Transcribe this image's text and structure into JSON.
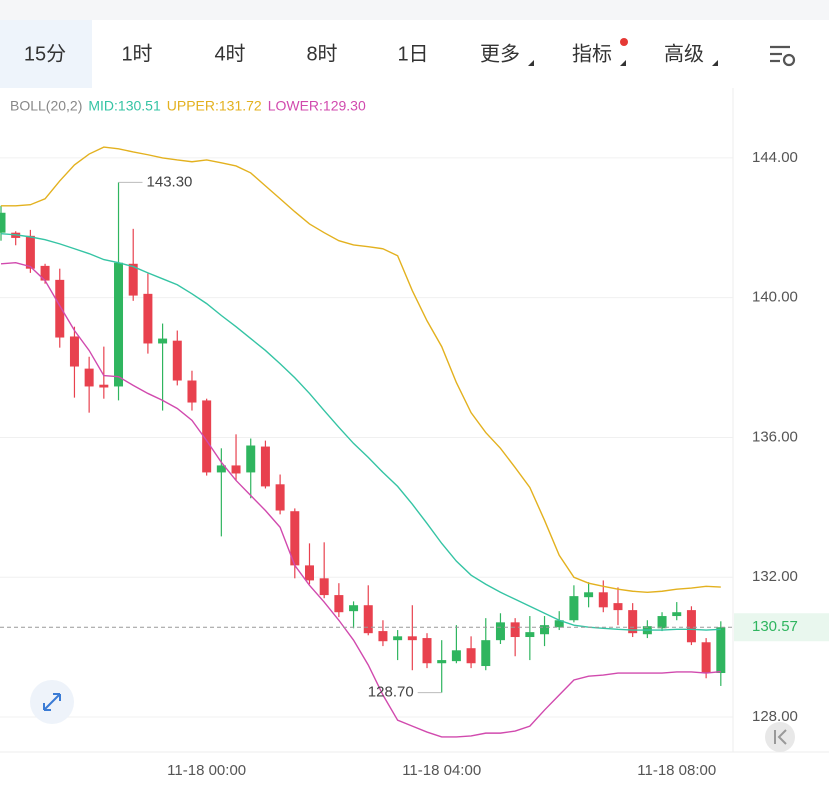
{
  "tabs": [
    "15分",
    "1时",
    "4时",
    "8时",
    "1日",
    "更多",
    "指标",
    "高级"
  ],
  "chart_data": {
    "type": "candlestick",
    "indicator": "BOLL(20,2)",
    "categories": [
      null,
      null,
      null,
      null,
      null,
      null,
      null,
      null,
      null,
      null,
      null,
      null,
      null,
      null,
      "11-18 00:00",
      null,
      null,
      null,
      null,
      null,
      null,
      null,
      null,
      null,
      null,
      null,
      null,
      null,
      null,
      null,
      "11-18 04:00",
      null,
      null,
      null,
      null,
      null,
      null,
      null,
      null,
      null,
      null,
      null,
      null,
      null,
      null,
      null,
      "11-18 08:00",
      null,
      null,
      null
    ],
    "open": [
      141.86,
      141.86,
      141.77,
      140.91,
      140.51,
      138.89,
      137.97,
      137.51,
      137.46,
      140.97,
      140.11,
      138.69,
      138.77,
      137.63,
      137.06,
      135.0,
      135.2,
      135.0,
      135.74,
      134.66,
      133.89,
      132.34,
      131.97,
      131.49,
      131.03,
      131.2,
      130.46,
      130.2,
      130.31,
      130.26,
      129.54,
      129.6,
      129.97,
      129.46,
      130.2,
      130.71,
      130.29,
      130.37,
      130.57,
      130.77,
      131.43,
      131.57,
      131.26,
      131.06,
      130.37,
      130.54,
      130.89,
      131.06,
      130.14,
      129.26
    ],
    "high": [
      142.63,
      141.9,
      141.94,
      140.97,
      140.83,
      139.17,
      138.31,
      138.6,
      143.3,
      141.97,
      140.69,
      139.26,
      139.06,
      137.91,
      137.11,
      135.69,
      136.09,
      135.97,
      135.91,
      134.94,
      133.97,
      132.97,
      133.0,
      131.83,
      131.31,
      131.77,
      130.77,
      130.49,
      131.2,
      130.4,
      130.2,
      130.63,
      130.31,
      130.83,
      130.97,
      130.83,
      130.89,
      130.89,
      131.03,
      131.77,
      131.86,
      131.91,
      131.71,
      131.26,
      130.77,
      131.0,
      131.29,
      131.17,
      130.26,
      130.74
    ],
    "low": [
      141.63,
      141.5,
      140.71,
      140.4,
      138.57,
      137.14,
      136.71,
      137.11,
      137.06,
      139.91,
      138.4,
      136.77,
      137.49,
      136.77,
      134.91,
      133.17,
      134.77,
      134.26,
      134.54,
      133.8,
      131.97,
      131.8,
      131.4,
      130.86,
      130.54,
      130.34,
      130.03,
      129.63,
      129.34,
      129.4,
      128.7,
      129.54,
      129.4,
      129.34,
      130.09,
      129.74,
      129.63,
      130.03,
      130.49,
      130.71,
      131.14,
      131.0,
      130.63,
      130.29,
      130.26,
      130.46,
      130.77,
      130.06,
      129.11,
      128.89
    ],
    "close": [
      142.43,
      141.71,
      140.83,
      140.49,
      138.86,
      138.03,
      137.46,
      137.43,
      141.0,
      140.06,
      138.69,
      138.83,
      137.63,
      137.0,
      135.0,
      135.2,
      134.97,
      135.77,
      134.6,
      133.91,
      132.34,
      131.91,
      131.49,
      131.0,
      131.2,
      130.4,
      130.17,
      130.31,
      130.2,
      129.54,
      129.63,
      129.91,
      129.54,
      130.2,
      130.71,
      130.29,
      130.43,
      130.63,
      130.77,
      131.46,
      131.57,
      131.14,
      131.06,
      130.4,
      130.6,
      130.89,
      131.0,
      130.14,
      129.26,
      130.57
    ],
    "up_color": "#2fb55f",
    "down_color": "#e8414e",
    "lines": [
      {
        "name": "MID:130.51",
        "color": "#35c4a4",
        "values": [
          141.83,
          141.8,
          141.74,
          141.66,
          141.54,
          141.4,
          141.26,
          141.09,
          141.0,
          140.89,
          140.71,
          140.54,
          140.37,
          140.11,
          139.83,
          139.49,
          139.17,
          138.83,
          138.49,
          138.11,
          137.71,
          137.26,
          136.77,
          136.29,
          135.83,
          135.43,
          135.0,
          134.6,
          134.09,
          133.54,
          132.97,
          132.46,
          132.06,
          131.8,
          131.57,
          131.37,
          131.17,
          130.97,
          130.77,
          130.63,
          130.57,
          130.54,
          130.51,
          130.49,
          130.49,
          130.49,
          130.51,
          130.51,
          130.49,
          130.51
        ]
      },
      {
        "name": "UPPER:131.72",
        "color": "#e3b11f",
        "values": [
          142.63,
          142.63,
          142.66,
          142.83,
          143.34,
          143.8,
          144.11,
          144.31,
          144.26,
          144.17,
          144.09,
          144.0,
          143.94,
          143.89,
          143.94,
          143.86,
          143.77,
          143.57,
          143.2,
          142.83,
          142.46,
          142.11,
          141.86,
          141.63,
          141.51,
          141.46,
          141.4,
          141.2,
          140.2,
          139.34,
          138.6,
          137.57,
          136.71,
          136.14,
          135.69,
          135.14,
          134.57,
          133.63,
          132.63,
          132.0,
          131.83,
          131.74,
          131.66,
          131.6,
          131.57,
          131.6,
          131.66,
          131.69,
          131.74,
          131.72
        ]
      },
      {
        "name": "LOWER:129.30",
        "color": "#d14aae",
        "values": [
          140.97,
          141.0,
          140.89,
          140.49,
          139.77,
          139.06,
          138.49,
          137.77,
          137.74,
          137.49,
          137.26,
          137.06,
          136.83,
          136.49,
          135.91,
          135.29,
          134.77,
          134.34,
          133.91,
          133.43,
          132.34,
          131.77,
          131.29,
          130.77,
          130.2,
          129.49,
          128.63,
          127.91,
          127.74,
          127.57,
          127.43,
          127.43,
          127.46,
          127.54,
          127.54,
          127.6,
          127.74,
          128.2,
          128.63,
          129.06,
          129.17,
          129.2,
          129.26,
          129.26,
          129.26,
          129.26,
          129.29,
          129.29,
          129.26,
          129.3
        ]
      }
    ],
    "max_label": "143.30",
    "min_label": "128.70",
    "last_price": {
      "value": 130.57,
      "label": "130.57"
    },
    "ylim": [
      127,
      146
    ],
    "yticks": [
      {
        "value": 128,
        "label": "128.00"
      },
      {
        "value": 132,
        "label": "132.00"
      },
      {
        "value": 136,
        "label": "136.00"
      },
      {
        "value": 140,
        "label": "140.00"
      },
      {
        "value": 144,
        "label": "144.00"
      }
    ],
    "grid": true
  }
}
